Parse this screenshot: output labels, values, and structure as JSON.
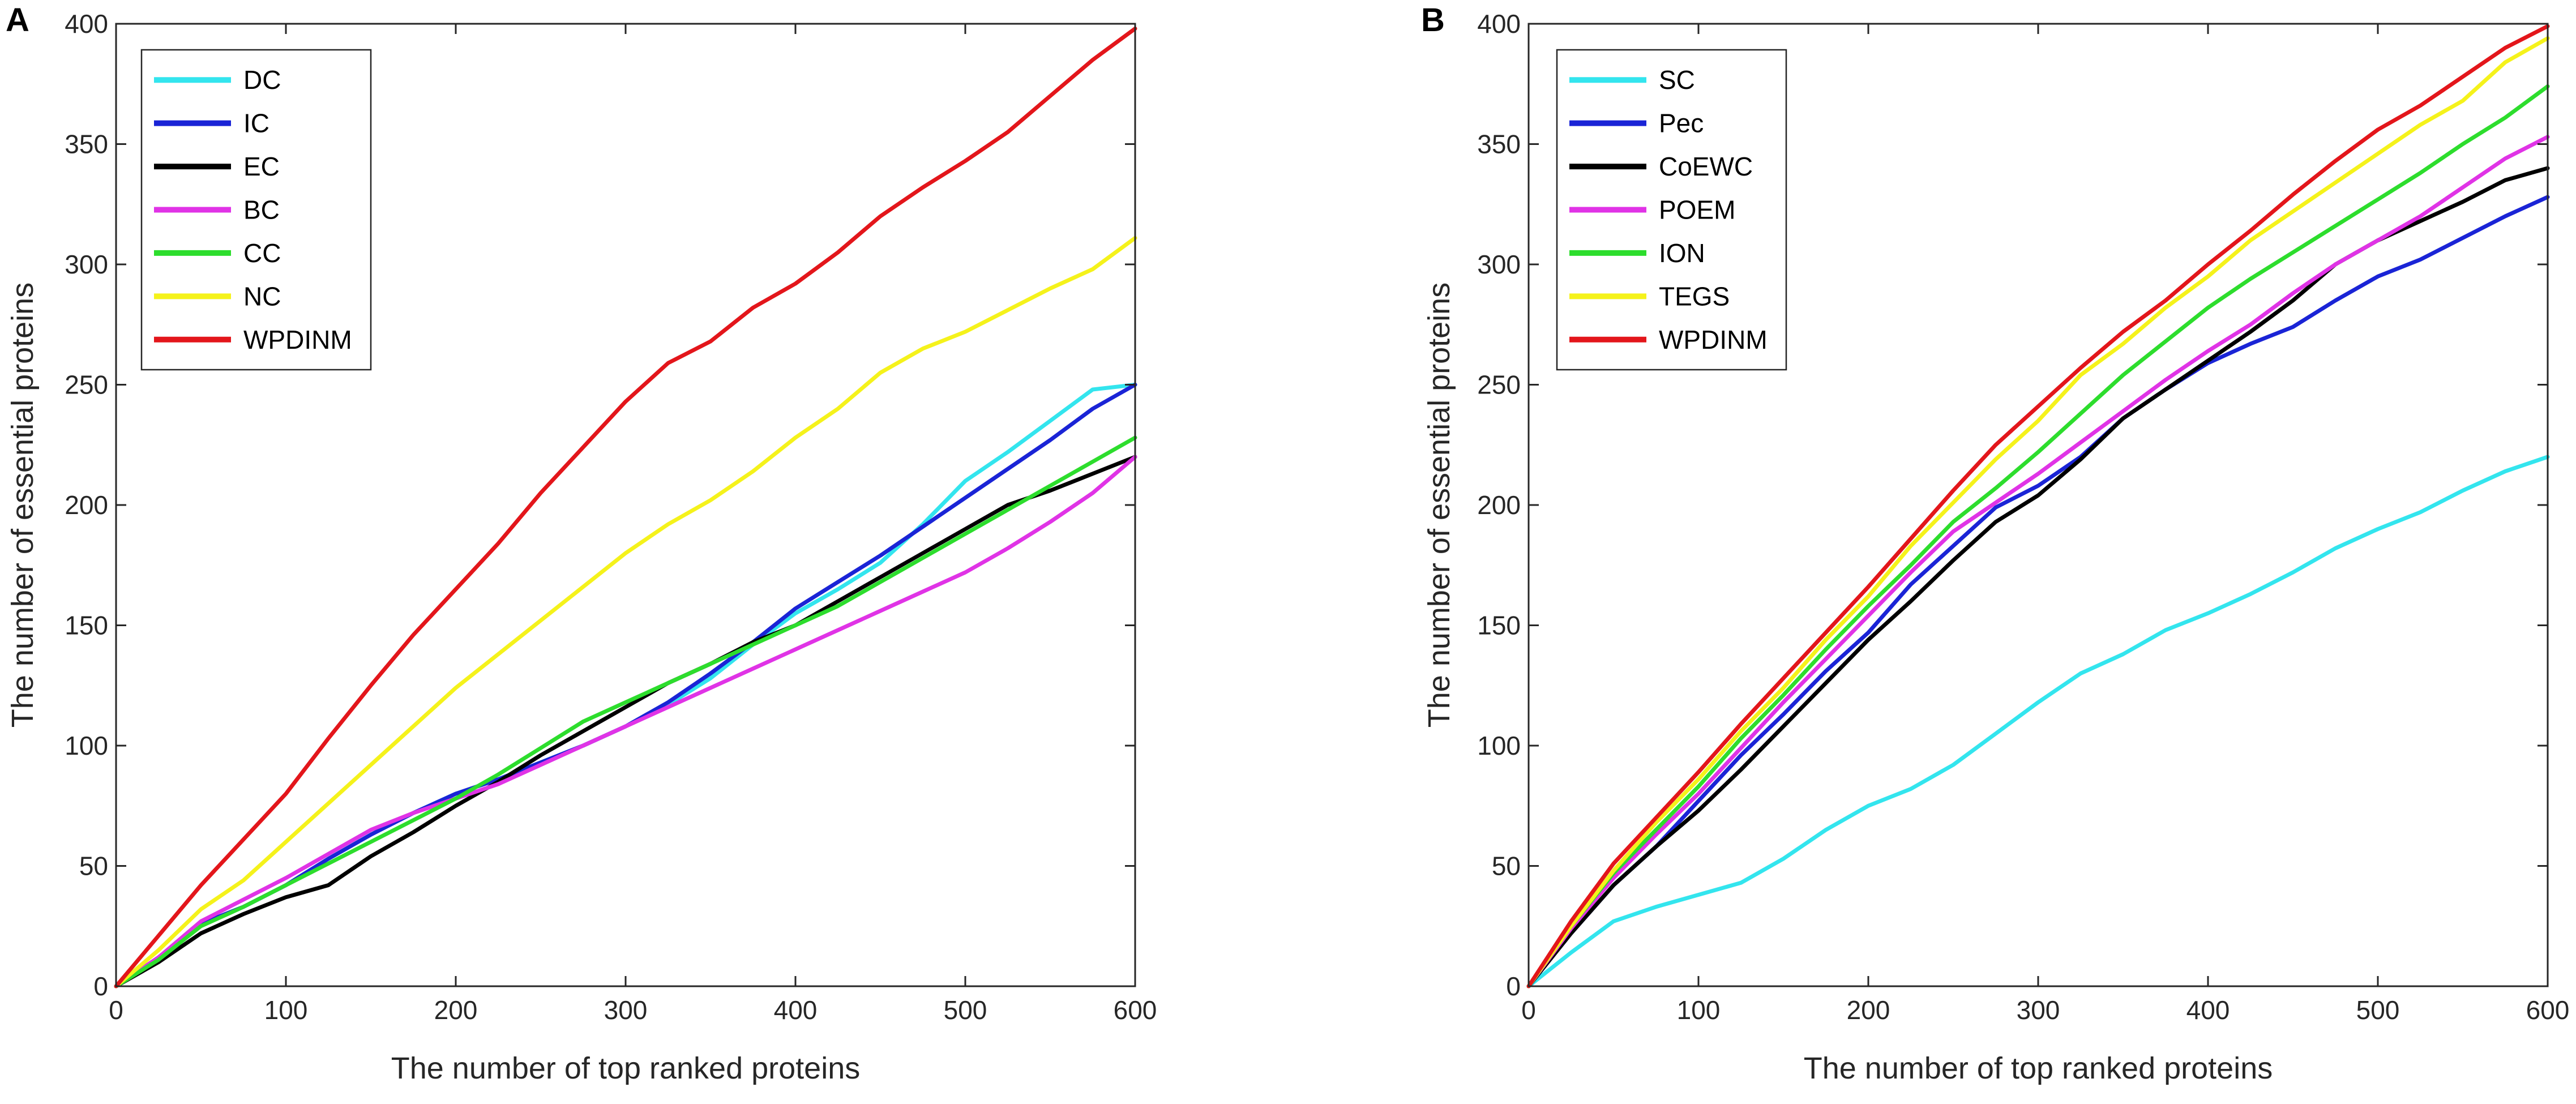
{
  "chart_data": [
    {
      "panel": "A",
      "type": "line",
      "xlabel": "The number of top ranked proteins",
      "ylabel": "The number of essential proteins",
      "xlim": [
        0,
        600
      ],
      "ylim": [
        0,
        400
      ],
      "xticks": [
        0,
        100,
        200,
        300,
        400,
        500,
        600
      ],
      "yticks": [
        0,
        50,
        100,
        150,
        200,
        250,
        300,
        350,
        400
      ],
      "legend_position": "top-left",
      "x": [
        0,
        25,
        50,
        75,
        100,
        125,
        150,
        175,
        200,
        225,
        250,
        275,
        300,
        325,
        350,
        375,
        400,
        425,
        450,
        475,
        500,
        525,
        550,
        575,
        600
      ],
      "series": [
        {
          "name": "DC",
          "color": "#33e5ee",
          "values": [
            0,
            12,
            26,
            33,
            42,
            53,
            63,
            72,
            80,
            86,
            93,
            100,
            108,
            117,
            128,
            142,
            155,
            165,
            176,
            192,
            210,
            222,
            235,
            248,
            250
          ]
        },
        {
          "name": "IC",
          "color": "#1a24d6",
          "values": [
            0,
            12,
            26,
            33,
            42,
            53,
            63,
            72,
            80,
            86,
            93,
            100,
            108,
            118,
            130,
            143,
            157,
            168,
            179,
            191,
            203,
            215,
            227,
            240,
            250
          ]
        },
        {
          "name": "EC",
          "color": "#000000",
          "values": [
            0,
            10,
            22,
            30,
            37,
            42,
            54,
            64,
            75,
            85,
            96,
            106,
            116,
            126,
            134,
            143,
            150,
            160,
            170,
            180,
            190,
            200,
            206,
            213,
            220
          ]
        },
        {
          "name": "BC",
          "color": "#e033e6",
          "values": [
            0,
            12,
            27,
            36,
            45,
            55,
            65,
            72,
            78,
            84,
            92,
            100,
            108,
            116,
            124,
            132,
            140,
            148,
            156,
            164,
            172,
            182,
            193,
            205,
            220
          ]
        },
        {
          "name": "CC",
          "color": "#2ddd2d",
          "values": [
            0,
            11,
            25,
            33,
            42,
            51,
            60,
            69,
            78,
            88,
            99,
            110,
            118,
            126,
            134,
            142,
            150,
            158,
            168,
            178,
            188,
            198,
            208,
            218,
            228
          ]
        },
        {
          "name": "NC",
          "color": "#f5f21b",
          "values": [
            0,
            15,
            32,
            44,
            60,
            76,
            92,
            108,
            124,
            138,
            152,
            166,
            180,
            192,
            202,
            214,
            228,
            240,
            255,
            265,
            272,
            281,
            290,
            298,
            311
          ]
        },
        {
          "name": "WPDINM",
          "color": "#e3161b",
          "values": [
            0,
            21,
            42,
            61,
            80,
            103,
            125,
            146,
            165,
            184,
            205,
            224,
            243,
            259,
            268,
            282,
            292,
            305,
            320,
            332,
            343,
            355,
            370,
            385,
            398
          ]
        }
      ]
    },
    {
      "panel": "B",
      "type": "line",
      "xlabel": "The number of top ranked proteins",
      "ylabel": "The number of essential proteins",
      "xlim": [
        0,
        600
      ],
      "ylim": [
        0,
        400
      ],
      "xticks": [
        0,
        100,
        200,
        300,
        400,
        500,
        600
      ],
      "yticks": [
        0,
        50,
        100,
        150,
        200,
        250,
        300,
        350,
        400
      ],
      "legend_position": "top-left",
      "x": [
        0,
        25,
        50,
        75,
        100,
        125,
        150,
        175,
        200,
        225,
        250,
        275,
        300,
        325,
        350,
        375,
        400,
        425,
        450,
        475,
        500,
        525,
        550,
        575,
        600
      ],
      "series": [
        {
          "name": "SC",
          "color": "#33e5ee",
          "values": [
            0,
            14,
            27,
            33,
            38,
            43,
            53,
            65,
            75,
            82,
            92,
            105,
            118,
            130,
            138,
            148,
            155,
            163,
            172,
            182,
            190,
            197,
            206,
            214,
            220
          ]
        },
        {
          "name": "Pec",
          "color": "#1a24d6",
          "values": [
            0,
            22,
            42,
            58,
            77,
            96,
            113,
            131,
            147,
            167,
            183,
            199,
            208,
            220,
            236,
            248,
            259,
            267,
            274,
            285,
            295,
            302,
            311,
            320,
            328
          ]
        },
        {
          "name": "CoEWC",
          "color": "#000000",
          "values": [
            0,
            22,
            42,
            58,
            73,
            90,
            108,
            126,
            144,
            160,
            177,
            193,
            204,
            219,
            236,
            248,
            260,
            272,
            285,
            300,
            310,
            318,
            326,
            335,
            340
          ]
        },
        {
          "name": "POEM",
          "color": "#e033e6",
          "values": [
            0,
            24,
            45,
            63,
            80,
            99,
            118,
            136,
            154,
            172,
            189,
            201,
            213,
            226,
            239,
            252,
            264,
            275,
            288,
            300,
            310,
            320,
            332,
            344,
            353
          ]
        },
        {
          "name": "ION",
          "color": "#2ddd2d",
          "values": [
            0,
            25,
            47,
            65,
            83,
            103,
            121,
            140,
            158,
            175,
            193,
            207,
            222,
            238,
            254,
            268,
            282,
            294,
            305,
            316,
            327,
            338,
            350,
            361,
            374
          ]
        },
        {
          "name": "TEGS",
          "color": "#f5f21b",
          "values": [
            0,
            25,
            48,
            68,
            86,
            106,
            124,
            144,
            162,
            183,
            201,
            219,
            235,
            254,
            267,
            282,
            295,
            310,
            322,
            334,
            346,
            358,
            368,
            384,
            394
          ]
        },
        {
          "name": "WPDINM",
          "color": "#e3161b",
          "values": [
            0,
            27,
            51,
            70,
            89,
            109,
            128,
            147,
            166,
            186,
            206,
            225,
            241,
            257,
            272,
            285,
            300,
            314,
            329,
            343,
            356,
            366,
            378,
            390,
            399
          ]
        }
      ]
    }
  ]
}
